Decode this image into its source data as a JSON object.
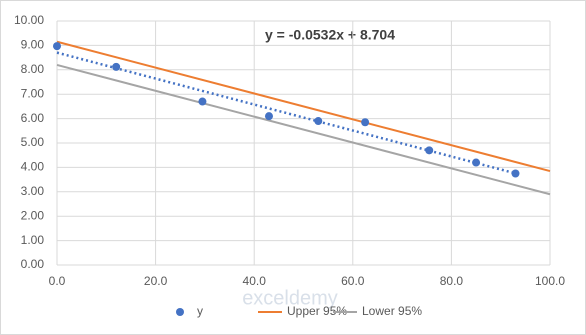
{
  "chart_data": {
    "type": "scatter",
    "annotation": "y = -0.0532x + 8.704",
    "watermark": "exceldemy",
    "series": [
      {
        "name": "y",
        "color": "#4472c4",
        "kind": "points",
        "x": [
          0,
          12,
          29.5,
          43,
          53,
          62.5,
          75.5,
          85,
          93
        ],
        "values": [
          8.97,
          8.12,
          6.7,
          6.1,
          5.9,
          5.85,
          4.7,
          4.2,
          3.75
        ]
      },
      {
        "name": "Upper 95%",
        "color": "#ed7d31",
        "kind": "line",
        "x": [
          0,
          100
        ],
        "values": [
          9.15,
          3.85
        ]
      },
      {
        "name": "Lower 95%",
        "color": "#a5a5a5",
        "kind": "line",
        "x": [
          0,
          100
        ],
        "values": [
          8.2,
          2.9
        ]
      }
    ],
    "trendline": {
      "color": "#4472c4",
      "x": [
        0,
        93
      ],
      "values": [
        8.704,
        3.756
      ]
    },
    "xlim": [
      0,
      100
    ],
    "xticks": [
      {
        "value": 0,
        "label": "0.0"
      },
      {
        "value": 20,
        "label": "20.0"
      },
      {
        "value": 40,
        "label": "40.0"
      },
      {
        "value": 60,
        "label": "60.0"
      },
      {
        "value": 80,
        "label": "80.0"
      },
      {
        "value": 100,
        "label": "100.0"
      }
    ],
    "ylim": [
      0,
      10
    ],
    "yticks": [
      {
        "value": 0,
        "label": "0.00"
      },
      {
        "value": 1,
        "label": "1.00"
      },
      {
        "value": 2,
        "label": "2.00"
      },
      {
        "value": 3,
        "label": "3.00"
      },
      {
        "value": 4,
        "label": "4.00"
      },
      {
        "value": 5,
        "label": "5.00"
      },
      {
        "value": 6,
        "label": "6.00"
      },
      {
        "value": 7,
        "label": "7.00"
      },
      {
        "value": 8,
        "label": "8.00"
      },
      {
        "value": 9,
        "label": "9.00"
      },
      {
        "value": 10,
        "label": "10.00"
      }
    ],
    "grid": true
  }
}
